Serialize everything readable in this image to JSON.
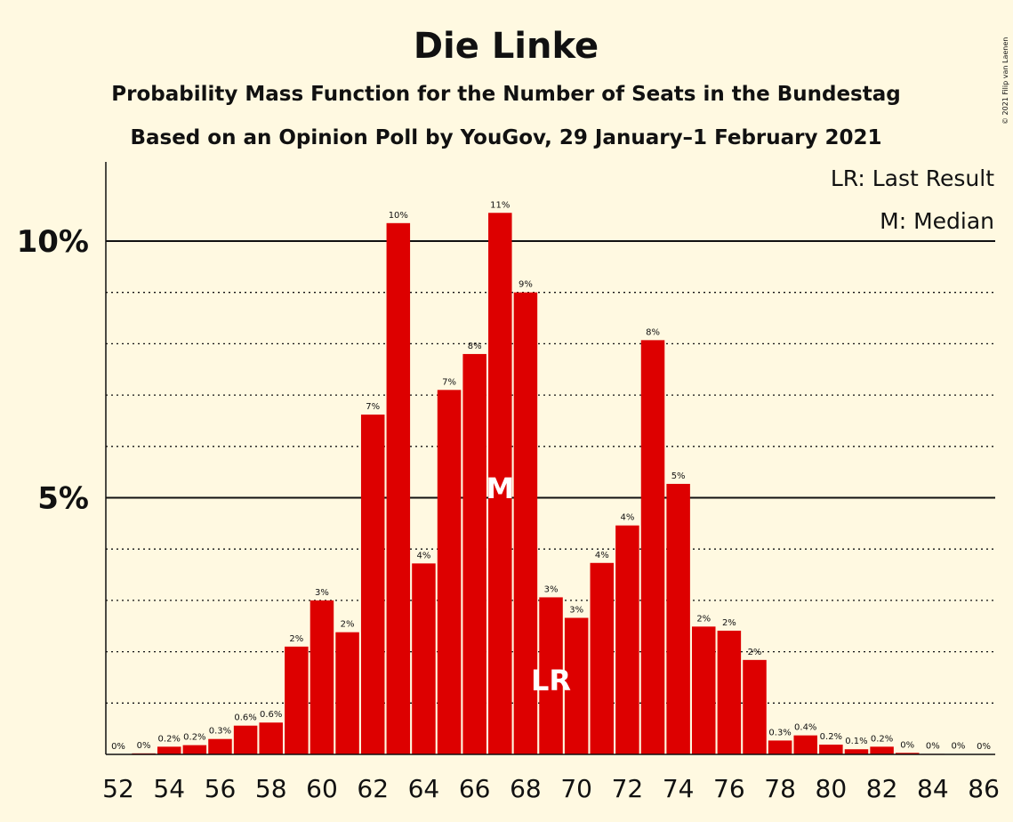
{
  "chart_data": {
    "type": "bar",
    "title": "Die Linke",
    "subtitle_1": "Probability Mass Function for the Number of Seats in the Bundestag",
    "subtitle_2": "Based on an Opinion Poll by YouGov, 29 January–1 February 2021",
    "legend": [
      "LR: Last Result",
      "M: Median"
    ],
    "copyright": "© 2021 Filip van Laenen",
    "yticks": [
      {
        "value": 5,
        "label": "5%"
      },
      {
        "value": 10,
        "label": "10%"
      }
    ],
    "ylim": [
      0,
      11.5
    ],
    "grid_minor": [
      1,
      2,
      3,
      4,
      6,
      7,
      8,
      9
    ],
    "grid_major": [
      5,
      10
    ],
    "categories": [
      52,
      53,
      54,
      55,
      56,
      57,
      58,
      59,
      60,
      61,
      62,
      63,
      64,
      65,
      66,
      67,
      68,
      69,
      70,
      71,
      72,
      73,
      74,
      75,
      76,
      77,
      78,
      79,
      80,
      81,
      82,
      83,
      84,
      85,
      86
    ],
    "values": [
      0,
      0.02,
      0.15,
      0.18,
      0.3,
      0.56,
      0.62,
      2.1,
      3.0,
      2.38,
      6.62,
      10.35,
      3.72,
      7.1,
      7.8,
      10.55,
      9.0,
      3.06,
      2.66,
      3.73,
      4.46,
      8.07,
      5.27,
      2.49,
      2.41,
      1.84,
      0.27,
      0.37,
      0.19,
      0.1,
      0.15,
      0.03,
      0.01,
      0.005,
      0.002
    ],
    "labels": [
      "0%",
      "0%",
      "0.2%",
      "0.2%",
      "0.3%",
      "0.6%",
      "0.6%",
      "2%",
      "3%",
      "2%",
      "7%",
      "10%",
      "4%",
      "7%",
      "8%",
      "11%",
      "9%",
      "3%",
      "3%",
      "4%",
      "4%",
      "8%",
      "5%",
      "2%",
      "2%",
      "2%",
      "0.3%",
      "0.4%",
      "0.2%",
      "0.1%",
      "0.2%",
      "0%",
      "0%",
      "0%",
      "0%"
    ],
    "xtick_labels": [
      "52",
      "54",
      "56",
      "58",
      "60",
      "62",
      "64",
      "66",
      "68",
      "70",
      "72",
      "74",
      "76",
      "78",
      "80",
      "82",
      "84",
      "86"
    ],
    "median_seat": 67,
    "median_marker": "M",
    "last_result_seat": 69,
    "last_result_marker": "LR",
    "bar_color": "#DD0000",
    "background": "#FFF9E1"
  }
}
